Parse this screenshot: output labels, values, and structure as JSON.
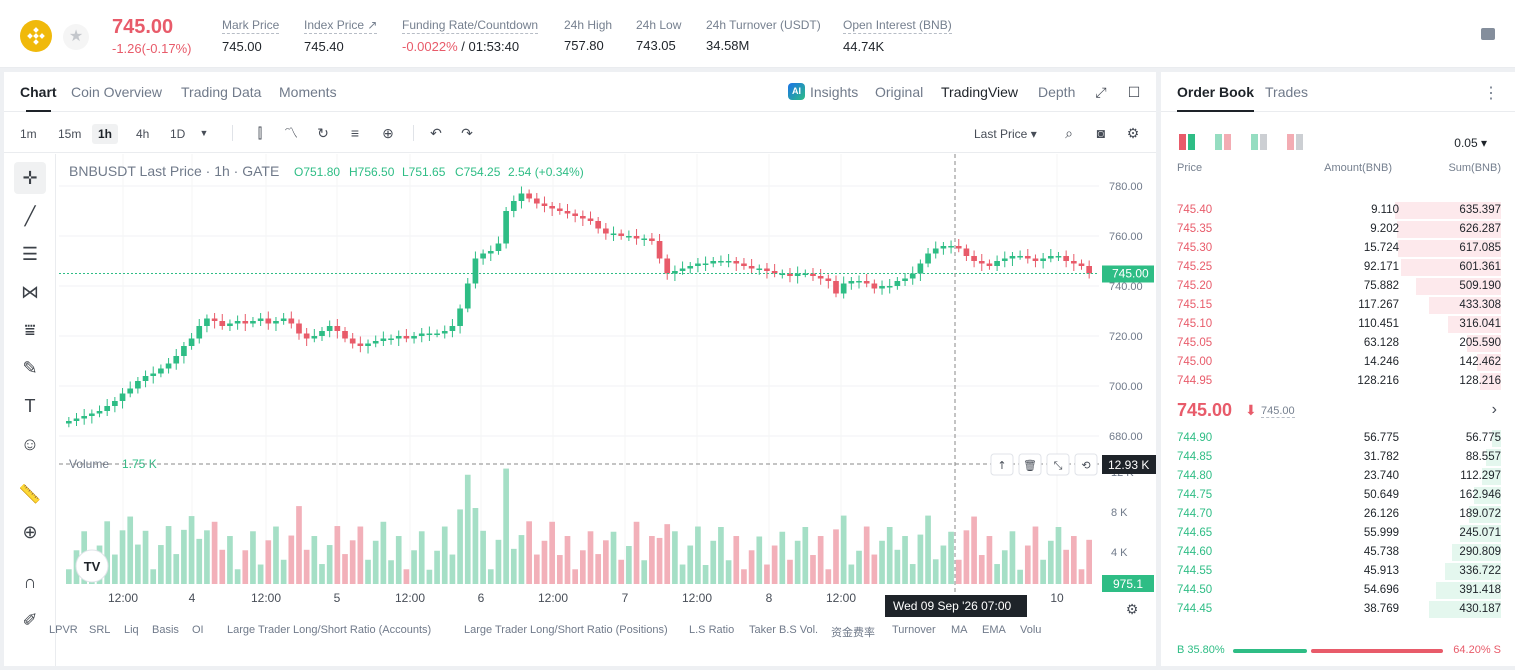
{
  "ticker": {
    "price": "745.00",
    "change": "-1.26(-0.17%)",
    "stats": [
      {
        "label": "Mark Price",
        "value": "745.00"
      },
      {
        "label": "Index Price ↗",
        "value": "745.40"
      },
      {
        "label": "Funding Rate/Countdown",
        "value_neg": "-0.0022%",
        "value": " / 01:53:40"
      },
      {
        "label": "24h High",
        "value": "757.80"
      },
      {
        "label": "24h Low",
        "value": "743.05"
      },
      {
        "label": "24h Turnover (USDT)",
        "value": "34.58M"
      },
      {
        "label": "Open Interest (BNB)",
        "value": "44.74K"
      }
    ]
  },
  "chart_tabs": [
    "Chart",
    "Coin Overview",
    "Trading Data",
    "Moments"
  ],
  "view_tabs": [
    "Insights",
    "Original",
    "TradingView",
    "Depth"
  ],
  "timeframes": [
    "1m",
    "15m",
    "1h",
    "4h",
    "1D"
  ],
  "active_timeframe": "1h",
  "last_price_select": "Last Price",
  "chart": {
    "legend_symbol": "BNBUSDT Last Price · 1h · GATE",
    "legend_o": "O751.80",
    "legend_h": "H756.50",
    "legend_l": "L751.65",
    "legend_c": "C754.25",
    "legend_chg": "2.54 (+0.34%)",
    "price_ticks": [
      "780.00",
      "760.00",
      "740.00",
      "720.00",
      "700.00",
      "680.00"
    ],
    "last_price_label": "745.00",
    "volume_label": "Volume",
    "volume_value": "1.75 K",
    "volume_ticks": [
      "12 K",
      "8 K",
      "4 K"
    ],
    "crosshair_vol": "12.93 K",
    "last_vol_label": "975.1",
    "x_ticks": [
      "12:00",
      "4",
      "12:00",
      "5",
      "12:00",
      "6",
      "12:00",
      "7",
      "12:00",
      "8",
      "12:00",
      "10"
    ],
    "crosshair_time": "Wed 09 Sep '26   07:00"
  },
  "chart_data": {
    "type": "candlestick",
    "closes": [
      686,
      687,
      688,
      689,
      690,
      692,
      694,
      697,
      699,
      702,
      704,
      705,
      707,
      709,
      712,
      716,
      719,
      724,
      727,
      726,
      724,
      725,
      726,
      725,
      726,
      727,
      725,
      726,
      727,
      725,
      721,
      719,
      720,
      722,
      724,
      722,
      719,
      717,
      716,
      717,
      718,
      719,
      719,
      720,
      719,
      720,
      721,
      721,
      721,
      722,
      724,
      731,
      741,
      751,
      753,
      754,
      757,
      770,
      774,
      777,
      775,
      773,
      772,
      771,
      770,
      769,
      768,
      767,
      766,
      763,
      761,
      761,
      760,
      760,
      759,
      759,
      758,
      751,
      745,
      746,
      747,
      748,
      749,
      749,
      750,
      750,
      750,
      749,
      748,
      747,
      747,
      746,
      745,
      745,
      744,
      745,
      745,
      744,
      743,
      742,
      737,
      741,
      742,
      742,
      741,
      739,
      740,
      740,
      742,
      743,
      745,
      749,
      753,
      755,
      756,
      756,
      755,
      752,
      750,
      749,
      748,
      750,
      751,
      752,
      752,
      751,
      750,
      751,
      752,
      752,
      750,
      749,
      748,
      745
    ]
  },
  "bottom_indicators": [
    "LPVR",
    "SRL",
    "Liq",
    "Basis",
    "OI",
    "Large Trader Long/Short Ratio (Accounts)",
    "Large Trader Long/Short Ratio (Positions)",
    "L.S Ratio",
    "Taker B.S Vol.",
    "资金费率",
    "Turnover",
    "MA",
    "EMA",
    "Volu"
  ],
  "orderbook": {
    "tabs": [
      "Order Book",
      "Trades"
    ],
    "precision": "0.05 ▾",
    "headers": [
      "Price",
      "Amount(BNB)",
      "Sum(BNB)"
    ],
    "asks": [
      {
        "p": "745.40",
        "a": "9.110",
        "s": "635.397",
        "f": 1.0
      },
      {
        "p": "745.35",
        "a": "9.202",
        "s": "626.287",
        "f": 0.985
      },
      {
        "p": "745.30",
        "a": "15.724",
        "s": "617.085",
        "f": 0.971
      },
      {
        "p": "745.25",
        "a": "92.171",
        "s": "601.361",
        "f": 0.946
      },
      {
        "p": "745.20",
        "a": "75.882",
        "s": "509.190",
        "f": 0.801
      },
      {
        "p": "745.15",
        "a": "117.267",
        "s": "433.308",
        "f": 0.682
      },
      {
        "p": "745.10",
        "a": "110.451",
        "s": "316.041",
        "f": 0.497
      },
      {
        "p": "745.05",
        "a": "63.128",
        "s": "205.590",
        "f": 0.324
      },
      {
        "p": "745.00",
        "a": "14.246",
        "s": "142.462",
        "f": 0.224
      },
      {
        "p": "744.95",
        "a": "128.216",
        "s": "128.216",
        "f": 0.202
      }
    ],
    "mid_price": "745.00",
    "mid_arrow": "⬇",
    "mid_mark": "745.00",
    "bids": [
      {
        "p": "744.90",
        "a": "56.775",
        "s": "56.775",
        "f": 0.089
      },
      {
        "p": "744.85",
        "a": "31.782",
        "s": "88.557",
        "f": 0.139
      },
      {
        "p": "744.80",
        "a": "23.740",
        "s": "112.297",
        "f": 0.177
      },
      {
        "p": "744.75",
        "a": "50.649",
        "s": "162.946",
        "f": 0.256
      },
      {
        "p": "744.70",
        "a": "26.126",
        "s": "189.072",
        "f": 0.298
      },
      {
        "p": "744.65",
        "a": "55.999",
        "s": "245.071",
        "f": 0.386
      },
      {
        "p": "744.60",
        "a": "45.738",
        "s": "290.809",
        "f": 0.458
      },
      {
        "p": "744.55",
        "a": "45.913",
        "s": "336.722",
        "f": 0.53
      },
      {
        "p": "744.50",
        "a": "54.696",
        "s": "391.418",
        "f": 0.616
      },
      {
        "p": "744.45",
        "a": "38.769",
        "s": "430.187",
        "f": 0.677
      }
    ],
    "buy_ratio": "B  35.80%",
    "sell_ratio": "64.20%  S"
  }
}
